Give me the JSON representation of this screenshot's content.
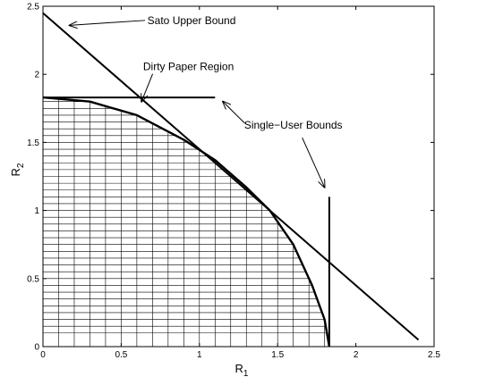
{
  "chart_data": {
    "type": "line",
    "title": "",
    "xlabel": {
      "main": "R",
      "sub": "1"
    },
    "ylabel": {
      "main": "R",
      "sub": "2"
    },
    "xlim": [
      0,
      2.5
    ],
    "ylim": [
      0,
      2.5
    ],
    "xticks": [
      "0",
      "0.5",
      "1",
      "1.5",
      "2",
      "2.5"
    ],
    "yticks": [
      "0",
      "0.5",
      "1",
      "1.5",
      "2",
      "2.5"
    ],
    "grid": false,
    "series": [
      {
        "name": "Sato Upper Bound",
        "x": [
          0,
          2.4
        ],
        "y": [
          2.45,
          0.05
        ]
      },
      {
        "name": "Dirty Paper Region",
        "x": [
          0,
          0.3,
          0.6,
          0.9,
          1.1,
          1.3,
          1.45,
          1.6,
          1.72,
          1.8,
          1.83
        ],
        "y": [
          1.83,
          1.8,
          1.7,
          1.52,
          1.37,
          1.17,
          1.0,
          0.75,
          0.45,
          0.2,
          0
        ]
      },
      {
        "name": "Single-User Bounds",
        "segments": [
          {
            "x": [
              0,
              1.1
            ],
            "y": [
              1.83,
              1.83
            ]
          },
          {
            "x": [
              1.83,
              1.83
            ],
            "y": [
              0,
              1.1
            ]
          }
        ]
      }
    ],
    "annotations": [
      {
        "text": "Sato Upper Bound",
        "x_text": 0.95,
        "y_text": 2.37,
        "x_arrow": 0.17,
        "y_arrow": 2.36
      },
      {
        "text": "Dirty Paper Region",
        "x_text": 0.93,
        "y_text": 2.03,
        "x_arrow": 0.63,
        "y_arrow": 1.8
      },
      {
        "text": "Single−User Bounds",
        "x_text": 1.6,
        "y_text": 1.6,
        "x_arrow": 1.15,
        "y_arrow": 1.8,
        "x_arrow2": 1.8,
        "y_arrow2": 1.17
      }
    ]
  }
}
